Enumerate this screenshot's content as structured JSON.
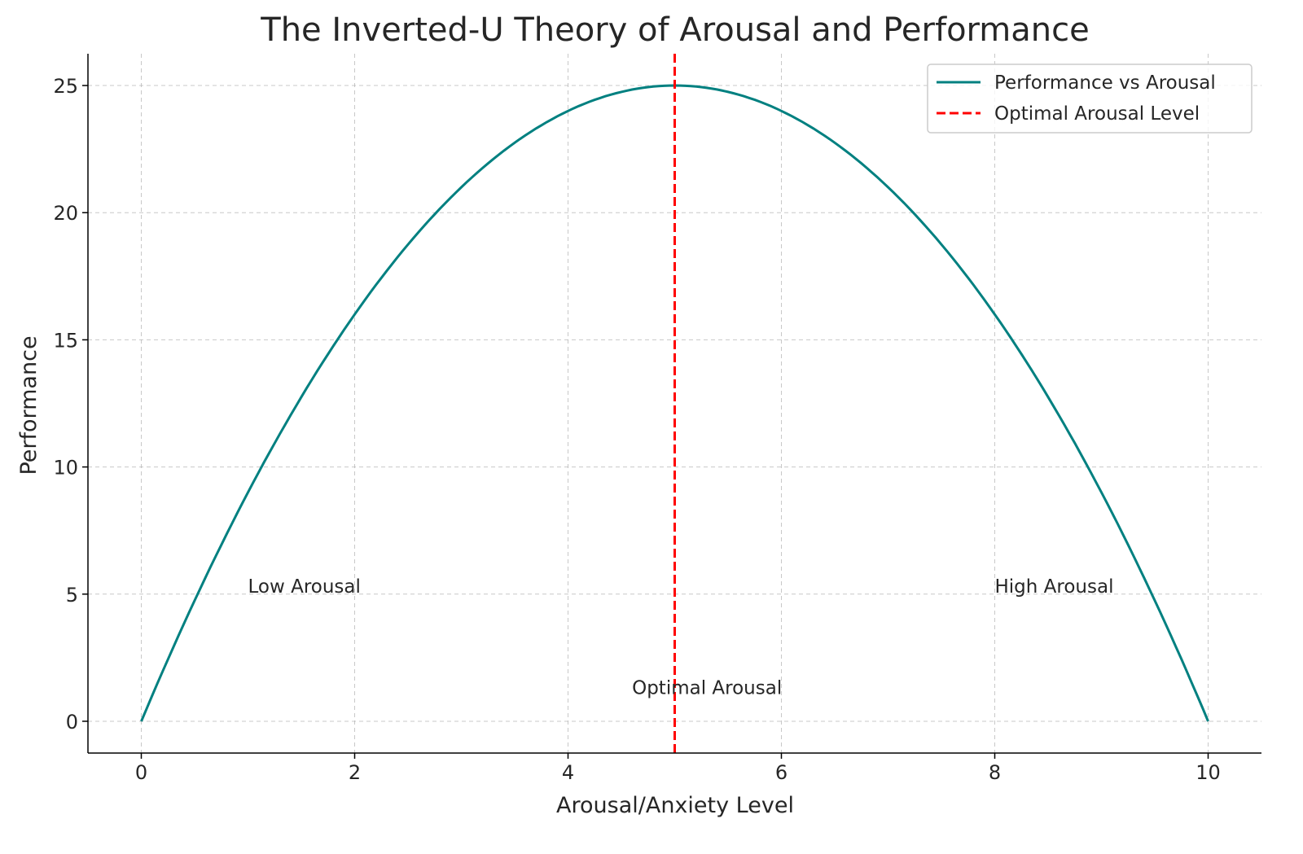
{
  "chart_data": {
    "type": "line",
    "title": "The Inverted-U Theory of Arousal and Performance",
    "xlabel": "Arousal/Anxiety Level",
    "ylabel": "Performance",
    "xlim": [
      -0.5,
      10.5
    ],
    "ylim": [
      -1.25,
      26.25
    ],
    "xticks": [
      0,
      2,
      4,
      6,
      8,
      10
    ],
    "yticks": [
      0,
      5,
      10,
      15,
      20,
      25
    ],
    "grid": true,
    "legend_position": "top-right",
    "series": [
      {
        "name": "Performance vs Arousal",
        "formula": "y = x*(10-x)",
        "x_range": [
          0,
          10
        ],
        "color": "#008080",
        "style": "solid"
      }
    ],
    "vlines": [
      {
        "name": "Optimal Arousal Level",
        "x": 5,
        "color": "#ff0000",
        "style": "dashed"
      }
    ],
    "annotations": [
      {
        "text": "Low Arousal",
        "x": 1,
        "y": 5
      },
      {
        "text": "High Arousal",
        "x": 8,
        "y": 5
      },
      {
        "text": "Optimal Arousal",
        "x": 4.6,
        "y": 1
      }
    ]
  }
}
